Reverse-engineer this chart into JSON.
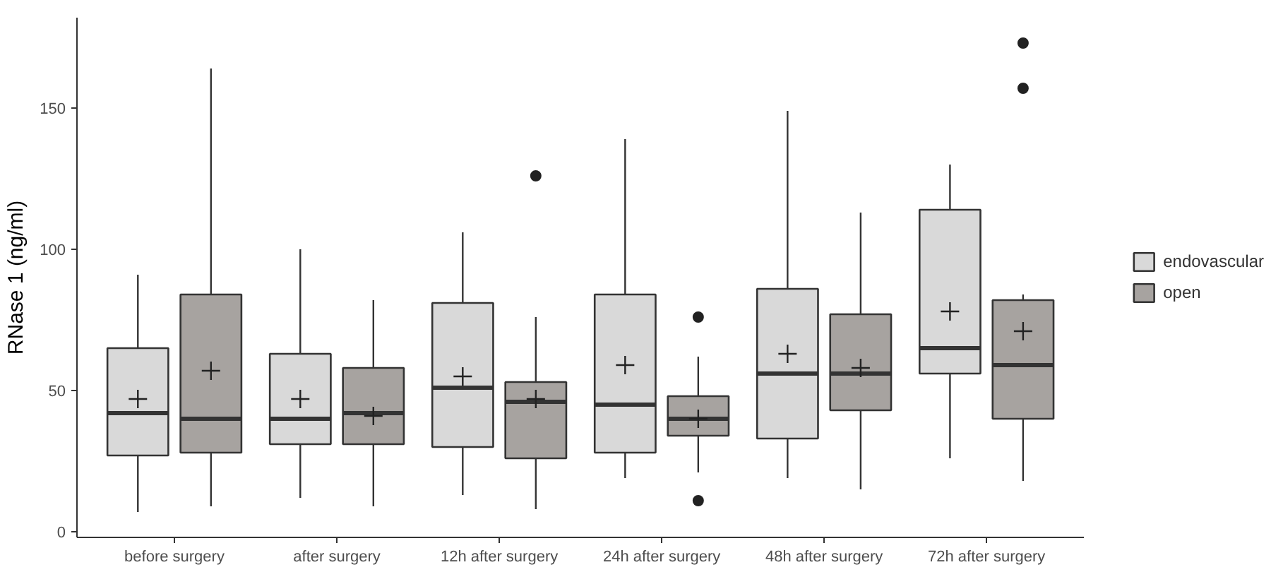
{
  "chart_data": {
    "type": "box",
    "ylabel": "RNase 1 (ng/ml)",
    "categories": [
      "before surgery",
      "after surgery",
      "12h after surgery",
      "24h after surgery",
      "48h after surgery",
      "72h after surgery"
    ],
    "series": [
      {
        "name": "endovascular",
        "color": "#d9d9d9",
        "boxes": [
          {
            "low": 7,
            "q1": 27,
            "median": 42,
            "q3": 65,
            "high": 91,
            "mean": 47
          },
          {
            "low": 12,
            "q1": 31,
            "median": 40,
            "q3": 63,
            "high": 100,
            "mean": 47
          },
          {
            "low": 13,
            "q1": 30,
            "median": 51,
            "q3": 81,
            "high": 106,
            "mean": 55
          },
          {
            "low": 19,
            "q1": 28,
            "median": 45,
            "q3": 84,
            "high": 139,
            "mean": 59
          },
          {
            "low": 19,
            "q1": 33,
            "median": 56,
            "q3": 86,
            "high": 149,
            "mean": 63
          },
          {
            "low": 26,
            "q1": 56,
            "median": 65,
            "q3": 114,
            "high": 130,
            "mean": 78
          }
        ]
      },
      {
        "name": "open",
        "color": "#a7a3a0",
        "boxes": [
          {
            "low": 9,
            "q1": 28,
            "median": 40,
            "q3": 84,
            "high": 164,
            "mean": 57
          },
          {
            "low": 9,
            "q1": 31,
            "median": 42,
            "q3": 58,
            "high": 82,
            "mean": 41
          },
          {
            "low": 8,
            "q1": 26,
            "median": 46,
            "q3": 53,
            "high": 76,
            "mean": 47,
            "outliers": [
              126
            ]
          },
          {
            "low": 21,
            "q1": 34,
            "median": 40,
            "q3": 48,
            "high": 62,
            "mean": 40,
            "outliers": [
              76,
              11
            ]
          },
          {
            "low": 15,
            "q1": 43,
            "median": 56,
            "q3": 77,
            "high": 113,
            "mean": 58
          },
          {
            "low": 18,
            "q1": 40,
            "median": 59,
            "q3": 82,
            "high": 84,
            "mean": 71,
            "outliers": [
              173,
              157
            ]
          }
        ]
      }
    ],
    "ylim": [
      -2,
      182
    ],
    "yticks": [
      0,
      50,
      100,
      150
    ],
    "grid": false,
    "legend": "right"
  }
}
